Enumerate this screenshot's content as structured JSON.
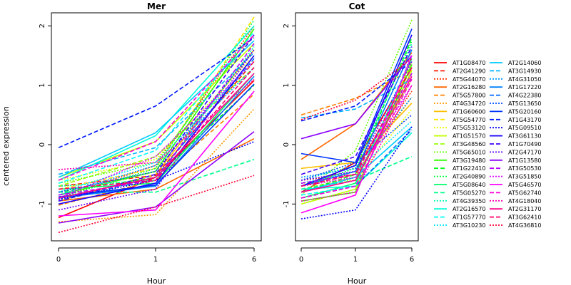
{
  "chart_data": {
    "type": "line",
    "ylabel": "centered expression",
    "xlabel": "Hour",
    "x_ticks": [
      "0",
      "1",
      "6"
    ],
    "y_ticks": [
      -1,
      0,
      1,
      2
    ],
    "ylim": [
      -1.62,
      2.22
    ],
    "grid": false,
    "legend_position": "right",
    "panels": [
      {
        "title": "Mer",
        "series": [
          {
            "name": "AT1G08470",
            "values": [
              -1.23,
              -0.55,
              1.08
            ]
          },
          {
            "name": "AT2G41290",
            "values": [
              -0.7,
              -0.52,
              1.4
            ]
          },
          {
            "name": "AT5G44070",
            "values": [
              -0.9,
              -0.35,
              2.0
            ]
          },
          {
            "name": "AT2G16280",
            "values": [
              -0.95,
              -0.75,
              0.1
            ]
          },
          {
            "name": "AT5G57800",
            "values": [
              -1.02,
              -0.6,
              0.85
            ]
          },
          {
            "name": "AT4G34720",
            "values": [
              -1.3,
              -1.18,
              0.6
            ]
          },
          {
            "name": "AT1G60600",
            "values": [
              -0.95,
              -0.5,
              1.6
            ]
          },
          {
            "name": "AT5G54770",
            "values": [
              -0.75,
              -0.4,
              2.15
            ]
          },
          {
            "name": "AT5G53120",
            "values": [
              -0.6,
              -0.25,
              1.5
            ]
          },
          {
            "name": "AT1G51570",
            "values": [
              -0.55,
              0.05,
              1.7
            ]
          },
          {
            "name": "AT3G48560",
            "values": [
              -0.7,
              -0.2,
              1.3
            ]
          },
          {
            "name": "AT5G65010",
            "values": [
              -0.65,
              -0.3,
              1.85
            ]
          },
          {
            "name": "AT3G19480",
            "values": [
              -0.85,
              -0.45,
              1.95
            ]
          },
          {
            "name": "AT1G22410",
            "values": [
              -0.8,
              -0.55,
              1.0
            ]
          },
          {
            "name": "AT2G40890",
            "values": [
              -0.9,
              -0.4,
              2.1
            ]
          },
          {
            "name": "AT5G08640",
            "values": [
              -0.75,
              -0.65,
              1.2
            ]
          },
          {
            "name": "AT5G05270",
            "values": [
              -0.8,
              -0.8,
              -0.25
            ]
          },
          {
            "name": "AT4G39350",
            "values": [
              -0.7,
              -0.6,
              1.65
            ]
          },
          {
            "name": "AT2G16570",
            "values": [
              -0.6,
              0.15,
              2.0
            ]
          },
          {
            "name": "AT1G57770",
            "values": [
              -0.65,
              -0.1,
              1.9
            ]
          },
          {
            "name": "AT3G10230",
            "values": [
              -0.8,
              -0.3,
              1.4
            ]
          },
          {
            "name": "AT2G14060",
            "values": [
              -0.55,
              0.2,
              1.75
            ]
          },
          {
            "name": "AT3G14930",
            "values": [
              -0.5,
              -0.05,
              1.55
            ]
          },
          {
            "name": "AT4G31050",
            "values": [
              -0.85,
              -0.35,
              1.3
            ]
          },
          {
            "name": "AT1G17220",
            "values": [
              -0.9,
              -0.7,
              1.15
            ]
          },
          {
            "name": "AT4G22380",
            "values": [
              -0.95,
              -0.55,
              1.45
            ]
          },
          {
            "name": "AT5G13650",
            "values": [
              -0.8,
              -0.45,
              1.6
            ]
          },
          {
            "name": "AT5G20160",
            "values": [
              -0.88,
              -0.68,
              1.02
            ]
          },
          {
            "name": "AT1G43170",
            "values": [
              -0.05,
              0.65,
              1.8
            ]
          },
          {
            "name": "AT5G09510",
            "values": [
              -0.92,
              -0.6,
              0.05
            ]
          },
          {
            "name": "AT3G61130",
            "values": [
              -1.0,
              -0.65,
              1.5
            ]
          },
          {
            "name": "AT1G70490",
            "values": [
              -0.95,
              -0.5,
              1.85
            ]
          },
          {
            "name": "AT2G47170",
            "values": [
              -1.1,
              -0.75,
              1.6
            ]
          },
          {
            "name": "AT1G13580",
            "values": [
              -1.32,
              -1.05,
              0.22
            ]
          },
          {
            "name": "AT3G50530",
            "values": [
              -0.85,
              -0.6,
              1.7
            ]
          },
          {
            "name": "AT3G51850",
            "values": [
              -0.9,
              -0.2,
              1.4
            ]
          },
          {
            "name": "AT5G46570",
            "values": [
              -1.2,
              -1.1,
              0.9
            ]
          },
          {
            "name": "AT5G62740",
            "values": [
              -0.6,
              0.05,
              1.85
            ]
          },
          {
            "name": "AT4G18040",
            "values": [
              -0.42,
              -0.3,
              1.1
            ]
          },
          {
            "name": "AT2G31170",
            "values": [
              -0.9,
              -0.55,
              1.2
            ]
          },
          {
            "name": "AT3G62410",
            "values": [
              -0.75,
              -0.6,
              1.3
            ]
          },
          {
            "name": "AT4G36810",
            "values": [
              -1.48,
              -1.05,
              -0.52
            ]
          }
        ]
      },
      {
        "title": "Cot",
        "series": [
          {
            "name": "AT1G08470",
            "values": [
              -0.8,
              -0.3,
              1.3
            ]
          },
          {
            "name": "AT2G41290",
            "values": [
              -0.7,
              -0.45,
              1.2
            ]
          },
          {
            "name": "AT5G44070",
            "values": [
              -0.6,
              -0.5,
              0.9
            ]
          },
          {
            "name": "AT2G16280",
            "values": [
              -0.25,
              0.35,
              1.55
            ]
          },
          {
            "name": "AT5G57800",
            "values": [
              0.5,
              0.78,
              1.25
            ]
          },
          {
            "name": "AT4G34720",
            "values": [
              -0.7,
              -0.5,
              0.8
            ]
          },
          {
            "name": "AT1G60600",
            "values": [
              -0.4,
              -0.3,
              0.7
            ]
          },
          {
            "name": "AT5G54770",
            "values": [
              -0.9,
              -0.7,
              1.4
            ]
          },
          {
            "name": "AT5G53120",
            "values": [
              -0.65,
              -0.6,
              0.6
            ]
          },
          {
            "name": "AT1G51570",
            "values": [
              -1.0,
              -0.75,
              1.25
            ]
          },
          {
            "name": "AT3G48560",
            "values": [
              -0.75,
              -0.55,
              1.1
            ]
          },
          {
            "name": "AT5G65010",
            "values": [
              -0.85,
              -0.1,
              2.1
            ]
          },
          {
            "name": "AT3G19480",
            "values": [
              -0.95,
              -0.8,
              1.35
            ]
          },
          {
            "name": "AT1G22410",
            "values": [
              -0.8,
              -0.5,
              1.8
            ]
          },
          {
            "name": "AT2G40890",
            "values": [
              -0.7,
              -0.4,
              1.75
            ]
          },
          {
            "name": "AT5G08640",
            "values": [
              -0.9,
              -0.65,
              1.45
            ]
          },
          {
            "name": "AT5G05270",
            "values": [
              -0.75,
              -0.6,
              -0.2
            ]
          },
          {
            "name": "AT4G39350",
            "values": [
              -0.6,
              -0.35,
              1.7
            ]
          },
          {
            "name": "AT2G16570",
            "values": [
              -0.75,
              -0.7,
              0.2
            ]
          },
          {
            "name": "AT1G57770",
            "values": [
              -0.85,
              -0.7,
              1.5
            ]
          },
          {
            "name": "AT3G10230",
            "values": [
              -0.65,
              -0.45,
              0.4
            ]
          },
          {
            "name": "AT2G14060",
            "values": [
              -0.8,
              -0.55,
              0.3
            ]
          },
          {
            "name": "AT3G14930",
            "values": [
              0.45,
              0.6,
              1.1
            ]
          },
          {
            "name": "AT4G31050",
            "values": [
              -0.55,
              -0.4,
              0.8
            ]
          },
          {
            "name": "AT1G17220",
            "values": [
              -0.7,
              -0.45,
              1.6
            ]
          },
          {
            "name": "AT4G22380",
            "values": [
              -0.9,
              -0.7,
              0.25
            ]
          },
          {
            "name": "AT5G13650",
            "values": [
              -0.6,
              -0.3,
              0.5
            ]
          },
          {
            "name": "AT5G20160",
            "values": [
              -0.15,
              -0.3,
              1.95
            ]
          },
          {
            "name": "AT1G43170",
            "values": [
              0.4,
              0.65,
              1.4
            ]
          },
          {
            "name": "AT5G09510",
            "values": [
              -1.25,
              -1.1,
              0.3
            ]
          },
          {
            "name": "AT3G61130",
            "values": [
              -0.7,
              -0.35,
              1.85
            ]
          },
          {
            "name": "AT1G70490",
            "values": [
              -0.5,
              -0.2,
              1.65
            ]
          },
          {
            "name": "AT2G47170",
            "values": [
              -0.6,
              -0.45,
              1.4
            ]
          },
          {
            "name": "AT1G13580",
            "values": [
              0.1,
              0.35,
              1.5
            ]
          },
          {
            "name": "AT3G50530",
            "values": [
              -0.65,
              -0.5,
              1.2
            ]
          },
          {
            "name": "AT3G51850",
            "values": [
              -0.7,
              -0.55,
              1.0
            ]
          },
          {
            "name": "AT5G46570",
            "values": [
              -1.15,
              -0.85,
              1.5
            ]
          },
          {
            "name": "AT5G62740",
            "values": [
              -0.9,
              -0.7,
              1.1
            ]
          },
          {
            "name": "AT4G18040",
            "values": [
              -0.95,
              -0.8,
              1.0
            ]
          },
          {
            "name": "AT2G31170",
            "values": [
              -0.8,
              -0.6,
              1.15
            ]
          },
          {
            "name": "AT3G62410",
            "values": [
              -0.7,
              -0.5,
              1.3
            ]
          },
          {
            "name": "AT4G36810",
            "values": [
              0.42,
              0.75,
              1.45
            ]
          }
        ]
      }
    ]
  },
  "legend_columns": [
    [
      {
        "name": "AT1G08470",
        "color": "#ff0000",
        "dash": "solid"
      },
      {
        "name": "AT2G41290",
        "color": "#ff1a00",
        "dash": "dashed"
      },
      {
        "name": "AT5G44070",
        "color": "#ff3300",
        "dash": "dotted"
      },
      {
        "name": "AT2G16280",
        "color": "#ff6600",
        "dash": "solid"
      },
      {
        "name": "AT5G57800",
        "color": "#ff8000",
        "dash": "dashed"
      },
      {
        "name": "AT4G34720",
        "color": "#ff9900",
        "dash": "dotted"
      },
      {
        "name": "AT1G60600",
        "color": "#ffbf00",
        "dash": "solid"
      },
      {
        "name": "AT5G54770",
        "color": "#ffe600",
        "dash": "dashed"
      },
      {
        "name": "AT5G53120",
        "color": "#e6ff00",
        "dash": "dotted"
      },
      {
        "name": "AT1G51570",
        "color": "#bfff00",
        "dash": "solid"
      },
      {
        "name": "AT3G48560",
        "color": "#99ff00",
        "dash": "dashed"
      },
      {
        "name": "AT5G65010",
        "color": "#66ff00",
        "dash": "dotted"
      },
      {
        "name": "AT3G19480",
        "color": "#33ff00",
        "dash": "solid"
      },
      {
        "name": "AT1G22410",
        "color": "#00ff1a",
        "dash": "dashed"
      },
      {
        "name": "AT2G40890",
        "color": "#00ff40",
        "dash": "dotted"
      },
      {
        "name": "AT5G08640",
        "color": "#00ff66",
        "dash": "solid"
      },
      {
        "name": "AT5G05270",
        "color": "#00ff8c",
        "dash": "dashed"
      },
      {
        "name": "AT4G39350",
        "color": "#00ffb3",
        "dash": "dotted"
      },
      {
        "name": "AT2G16570",
        "color": "#00ffd9",
        "dash": "solid"
      },
      {
        "name": "AT1G57770",
        "color": "#00ffff",
        "dash": "dashed"
      },
      {
        "name": "AT3G10230",
        "color": "#00e6ff",
        "dash": "dotted"
      }
    ],
    [
      {
        "name": "AT2G14060",
        "color": "#00ccff",
        "dash": "solid"
      },
      {
        "name": "AT3G14930",
        "color": "#00b3ff",
        "dash": "dashed"
      },
      {
        "name": "AT4G31050",
        "color": "#0099ff",
        "dash": "dotted"
      },
      {
        "name": "AT1G17220",
        "color": "#0080ff",
        "dash": "solid"
      },
      {
        "name": "AT4G22380",
        "color": "#0066ff",
        "dash": "dashed"
      },
      {
        "name": "AT5G13650",
        "color": "#004cff",
        "dash": "dotted"
      },
      {
        "name": "AT5G20160",
        "color": "#0033ff",
        "dash": "solid"
      },
      {
        "name": "AT1G43170",
        "color": "#001aff",
        "dash": "dashed"
      },
      {
        "name": "AT5G09510",
        "color": "#0000ff",
        "dash": "dotted"
      },
      {
        "name": "AT3G61130",
        "color": "#1a00ff",
        "dash": "solid"
      },
      {
        "name": "AT1G70490",
        "color": "#4000ff",
        "dash": "dashed"
      },
      {
        "name": "AT2G47170",
        "color": "#6600ff",
        "dash": "dotted"
      },
      {
        "name": "AT1G13580",
        "color": "#8c00ff",
        "dash": "solid"
      },
      {
        "name": "AT3G50530",
        "color": "#b300ff",
        "dash": "dashed"
      },
      {
        "name": "AT3G51850",
        "color": "#d900ff",
        "dash": "dotted"
      },
      {
        "name": "AT5G46570",
        "color": "#ff00ff",
        "dash": "solid"
      },
      {
        "name": "AT5G62740",
        "color": "#ff00d9",
        "dash": "dashed"
      },
      {
        "name": "AT4G18040",
        "color": "#ff00b3",
        "dash": "dotted"
      },
      {
        "name": "AT2G31170",
        "color": "#ff008c",
        "dash": "solid"
      },
      {
        "name": "AT3G62410",
        "color": "#ff0066",
        "dash": "dashed"
      },
      {
        "name": "AT4G36810",
        "color": "#ff0033",
        "dash": "dotted"
      }
    ]
  ]
}
